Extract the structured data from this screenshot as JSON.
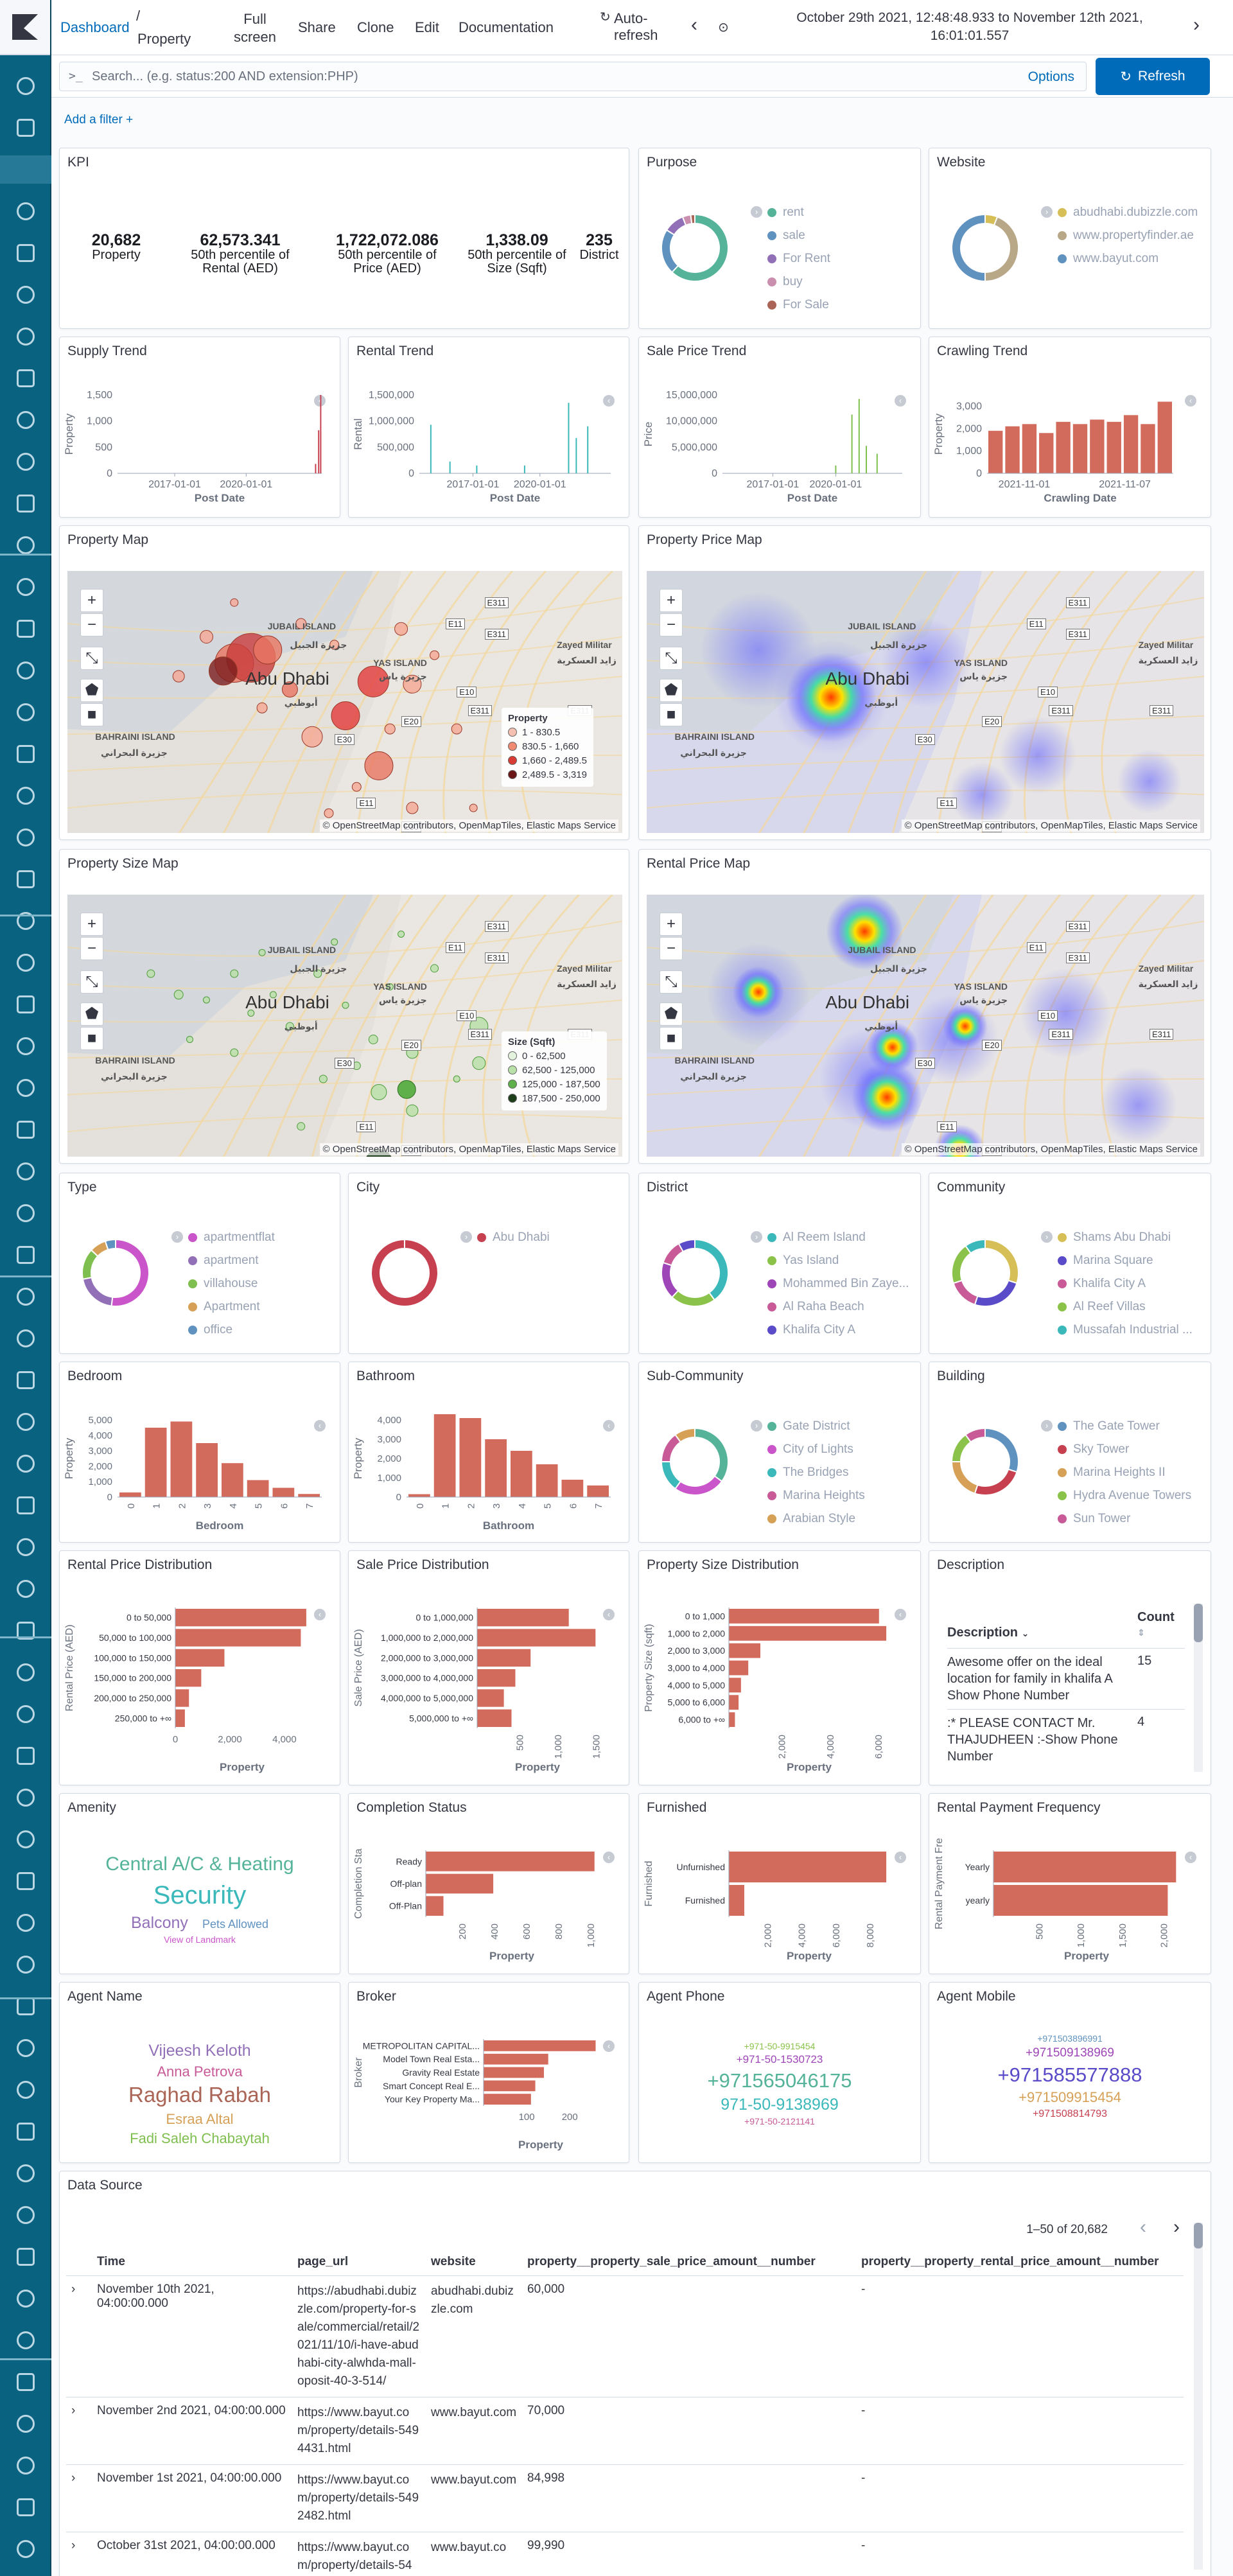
{
  "topbar": {
    "dashboard": "Dashboard",
    "slash": "/",
    "current": "Property",
    "full_screen": "Full screen",
    "share": "Share",
    "clone": "Clone",
    "edit": "Edit",
    "documentation": "Documentation",
    "auto_refresh": "Auto-refresh",
    "time_range": "October 29th 2021, 12:48:48.933 to November 12th 2021, 16:01:01.557"
  },
  "query": {
    "prompt": ">_",
    "placeholder": "Search... (e.g. status:200 AND extension:PHP)",
    "options": "Options",
    "refresh": "Refresh"
  },
  "add_filter": "Add a filter +",
  "kpi": {
    "title": "KPI",
    "items": [
      {
        "value": "20,682",
        "label": "Property"
      },
      {
        "value": "62,573.341",
        "label": "50th percentile of Rental (AED)"
      },
      {
        "value": "1,722,072.086",
        "label": "50th percentile of Price (AED)"
      },
      {
        "value": "1,338.09",
        "label": "50th percentile of Size (Sqft)"
      },
      {
        "value": "235",
        "label": "District"
      }
    ]
  },
  "purpose": {
    "title": "Purpose",
    "legend": [
      "rent",
      "sale",
      "For Rent",
      "buy",
      "For Sale"
    ],
    "colors": [
      "#54b399",
      "#6092c0",
      "#9170b8",
      "#ca8eae",
      "#aa6556"
    ],
    "values": [
      62,
      22,
      10,
      4,
      2
    ]
  },
  "website": {
    "title": "Website",
    "legend": [
      "abudhabi.dubizzle.com",
      "www.propertyfinder.ae",
      "www.bayut.com"
    ],
    "colors": [
      "#d6bf57",
      "#b9a888",
      "#6092c0"
    ],
    "values": [
      6,
      44,
      50
    ]
  },
  "supply_trend": {
    "title": "Supply Trend",
    "ylabel": "Property",
    "xlabel": "Post Date",
    "yticks": [
      "1,500",
      "1,000",
      "500",
      "0"
    ],
    "xticks": [
      "2017-01-01",
      "2020-01-01"
    ]
  },
  "rental_trend": {
    "title": "Rental Trend",
    "ylabel": "Rental",
    "xlabel": "Post Date",
    "yticks": [
      "1,500,000",
      "1,000,000",
      "500,000",
      "0"
    ],
    "xticks": [
      "2017-01-01",
      "2020-01-01"
    ]
  },
  "sale_trend": {
    "title": "Sale Price Trend",
    "ylabel": "Price",
    "xlabel": "Post Date",
    "yticks": [
      "15,000,000",
      "10,000,000",
      "5,000,000",
      "0"
    ],
    "xticks": [
      "2017-01-01",
      "2020-01-01"
    ]
  },
  "crawling_trend": {
    "title": "Crawling Trend",
    "ylabel": "Property",
    "xlabel": "Crawling Date",
    "yticks": [
      "3,000",
      "2,000",
      "1,000",
      "0"
    ],
    "xticks": [
      "2021-11-01",
      "2021-11-07"
    ],
    "values": [
      1900,
      2100,
      2200,
      1800,
      2300,
      2200,
      2400,
      2300,
      2600,
      2200,
      3200
    ]
  },
  "property_map": {
    "title": "Property Map",
    "legend_title": "Property",
    "legend": [
      "1 - 830.5",
      "830.5 - 1,660",
      "1,660 - 2,489.5",
      "2,489.5 - 3,319"
    ]
  },
  "price_map": {
    "title": "Property Price Map"
  },
  "size_map": {
    "title": "Property Size Map",
    "legend_title": "Size (Sqft)",
    "legend": [
      "0 - 62,500",
      "62,500 - 125,000",
      "125,000 - 187,500",
      "187,500 - 250,000"
    ]
  },
  "rental_map": {
    "title": "Rental Price Map"
  },
  "map_labels": {
    "abu_dhabi": "Abu Dhabi",
    "abu_dhabi_ar": "أبوظبي",
    "jubail": "JUBAIL ISLAND",
    "jubail_ar": "جزيرة الجبيل",
    "yas": "YAS ISLAND",
    "yas_ar": "جزيرة ياس",
    "bahraini": "BAHRAINI ISLAND",
    "bahraini_ar": "جزيرة البحراني",
    "zayed": "Zayed Militar",
    "zayed_ar": "زايد العسكرية",
    "e311": "E311",
    "e11": "E11",
    "e10": "E10",
    "e20": "E20",
    "e30": "E30",
    "attribution": "© OpenStreetMap contributors, OpenMapTiles, Elastic Maps Service"
  },
  "type": {
    "title": "Type",
    "legend": [
      "apartmentflat",
      "apartment",
      "villahouse",
      "Apartment",
      "office"
    ],
    "colors": [
      "#ca54c9",
      "#9170b8",
      "#7fbf4f",
      "#d6a157",
      "#6092c0"
    ],
    "values": [
      52,
      20,
      15,
      8,
      5
    ]
  },
  "city": {
    "title": "City",
    "legend": [
      "Abu Dhabi"
    ],
    "colors": [
      "#c6404f"
    ],
    "values": [
      100
    ]
  },
  "district": {
    "title": "District",
    "legend": [
      "Al Reem Island",
      "Yas Island",
      "Mohammed Bin Zaye...",
      "Al Raha Beach",
      "Khalifa City A"
    ],
    "colors": [
      "#3ab8ba",
      "#8bc34a",
      "#9e46b8",
      "#c85a97",
      "#5a4bc8"
    ],
    "values": [
      40,
      22,
      18,
      12,
      8
    ]
  },
  "community": {
    "title": "Community",
    "legend": [
      "Shams Abu Dhabi",
      "Marina Square",
      "Khalifa City A",
      "Al Reef Villas",
      "Mussafah Industrial ..."
    ],
    "colors": [
      "#d6bf57",
      "#5a4bc8",
      "#c85a97",
      "#8bc34a",
      "#3ab8ba"
    ],
    "values": [
      30,
      25,
      15,
      20,
      10
    ]
  },
  "bedroom": {
    "title": "Bedroom",
    "ylabel": "Property",
    "xlabel": "Bedroom",
    "yticks": [
      "5,000",
      "4,000",
      "3,000",
      "2,000",
      "1,000",
      "0"
    ],
    "categories": [
      "0",
      "1",
      "2",
      "3",
      "4",
      "5",
      "6",
      "7"
    ],
    "values": [
      300,
      4500,
      4900,
      3500,
      2200,
      1100,
      600,
      200
    ]
  },
  "bathroom": {
    "title": "Bathroom",
    "ylabel": "Property",
    "xlabel": "Bathroom",
    "yticks": [
      "4,000",
      "3,000",
      "2,000",
      "1,000",
      "0"
    ],
    "categories": [
      "0",
      "1",
      "2",
      "3",
      "4",
      "5",
      "6",
      "7"
    ],
    "values": [
      150,
      4300,
      4100,
      3000,
      2400,
      1700,
      900,
      600
    ]
  },
  "sub_community": {
    "title": "Sub-Community",
    "legend": [
      "Gate District",
      "City of Lights",
      "The Bridges",
      "Marina Heights",
      "Arabian Style"
    ],
    "colors": [
      "#54b399",
      "#ca54c9",
      "#3ab8ba",
      "#c85a97",
      "#d6a157"
    ],
    "values": [
      35,
      25,
      15,
      15,
      10
    ]
  },
  "building": {
    "title": "Building",
    "legend": [
      "The Gate Tower",
      "Sky Tower",
      "Marina Heights II",
      "Hydra Avenue Towers",
      "Sun Tower"
    ],
    "colors": [
      "#6092c0",
      "#c6404f",
      "#d6a157",
      "#8bc34a",
      "#c85a97"
    ],
    "values": [
      30,
      25,
      20,
      15,
      10
    ]
  },
  "rental_dist": {
    "title": "Rental Price Distribution",
    "ylabel": "Rental Price (AED)",
    "xlabel": "Property",
    "categories": [
      "0 to 50,000",
      "50,000 to 100,000",
      "100,000 to 150,000",
      "150,000 to 200,000",
      "200,000 to 250,000",
      "250,000 to +∞"
    ],
    "values": [
      4800,
      4600,
      1800,
      950,
      500,
      350
    ],
    "xticks": [
      "0",
      "2,000",
      "4,000"
    ]
  },
  "sale_dist": {
    "title": "Sale Price Distribution",
    "ylabel": "Sale Price (AED)",
    "xlabel": "Property",
    "categories": [
      "0 to 1,000,000",
      "1,000,000 to 2,000,000",
      "2,000,000 to 3,000,000",
      "3,000,000 to 4,000,000",
      "4,000,000 to 5,000,000",
      "5,000,000 to +∞"
    ],
    "values": [
      1200,
      1550,
      700,
      500,
      350,
      450
    ],
    "xticks": [
      "500",
      "1,000",
      "1,500"
    ]
  },
  "size_dist": {
    "title": "Property Size Distribution",
    "ylabel": "Property Size (sqft)",
    "xlabel": "Property",
    "categories": [
      "0 to 1,000",
      "1,000 to 2,000",
      "2,000 to 3,000",
      "3,000 to 4,000",
      "4,000 to 5,000",
      "5,000 to 6,000",
      "6,000 to +∞"
    ],
    "values": [
      6200,
      6500,
      1300,
      800,
      500,
      400,
      250
    ],
    "xticks": [
      "2,000",
      "4,000",
      "6,000"
    ]
  },
  "description": {
    "title": "Description",
    "col1": "Description",
    "col2": "Count",
    "rows": [
      {
        "text": "Awesome offer on the ideal location for family in khalifa A  Show Phone Number",
        "count": "15"
      },
      {
        "text": ":* PLEASE CONTACT Mr. THAJUDHEEN :-Show Phone Number",
        "count": "4"
      }
    ]
  },
  "amenity": {
    "title": "Amenity",
    "words": [
      {
        "t": "Central A/C & Heating",
        "c": "#54b399"
      },
      {
        "t": "Security",
        "c": "#3ab8ba"
      },
      {
        "t": "Balcony",
        "c": "#9170b8"
      },
      {
        "t": "Pets Allowed",
        "c": "#6092c0"
      },
      {
        "t": "View of Landmark",
        "c": "#ca54c9"
      }
    ]
  },
  "completion": {
    "title": "Completion Status",
    "ylabel": "Completion Sta",
    "xlabel": "Property",
    "categories": [
      "Ready",
      "Off-plan",
      "Off-Plan"
    ],
    "values": [
      1050,
      420,
      110
    ],
    "xticks": [
      "200",
      "400",
      "600",
      "800",
      "1,000"
    ]
  },
  "furnished": {
    "title": "Furnished",
    "ylabel": "Furnished",
    "xlabel": "Property",
    "categories": [
      "Unfurnished",
      "Furnished"
    ],
    "values": [
      9200,
      900
    ],
    "xticks": [
      "2,000",
      "4,000",
      "6,000",
      "8,000"
    ]
  },
  "payment": {
    "title": "Rental Payment Frequency",
    "ylabel": "Rental Payment Fre",
    "xlabel": "Property",
    "categories": [
      "Yearly",
      "yearly"
    ],
    "values": [
      2200,
      2100
    ],
    "xticks": [
      "500",
      "1,000",
      "1,500",
      "2,000"
    ]
  },
  "agent_name": {
    "title": "Agent Name",
    "words": [
      {
        "t": "Vijeesh Keloth",
        "c": "#9170b8"
      },
      {
        "t": "Anna Petrova",
        "c": "#c85a97"
      },
      {
        "t": "Raghad Rabah",
        "c": "#aa6556"
      },
      {
        "t": "Esraa Altal",
        "c": "#d6a157"
      },
      {
        "t": "Fadi Saleh Chabaytah",
        "c": "#7fbf4f"
      }
    ]
  },
  "broker": {
    "title": "Broker",
    "ylabel": "Broker",
    "xlabel": "Property",
    "categories": [
      "METROPOLITAN CAPITAL...",
      "Model Town Real Esta...",
      "Gravity Real Estate",
      "Smart Concept Real E...",
      "Your Key Property Ma..."
    ],
    "values": [
      260,
      150,
      140,
      120,
      110
    ],
    "xticks": [
      "100",
      "200"
    ]
  },
  "agent_phone": {
    "title": "Agent Phone",
    "words": [
      {
        "t": "+971-50-9915454",
        "c": "#8bc34a"
      },
      {
        "t": "+971-50-1530723",
        "c": "#9e46b8"
      },
      {
        "t": "+971565046175",
        "c": "#54b399"
      },
      {
        "t": "971-50-9138969",
        "c": "#3ab8ba"
      },
      {
        "t": "+971-50-2121141",
        "c": "#c85a97"
      }
    ]
  },
  "agent_mobile": {
    "title": "Agent Mobile",
    "words": [
      {
        "t": "+971503896991",
        "c": "#6092c0"
      },
      {
        "t": "+971509138969",
        "c": "#9e46b8"
      },
      {
        "t": "+971585577888",
        "c": "#5a4bc8"
      },
      {
        "t": "+971509915454",
        "c": "#d6a157"
      },
      {
        "t": "+971508814793",
        "c": "#c6404f"
      }
    ]
  },
  "data_source": {
    "title": "Data Source",
    "pager": "1–50 of 20,682",
    "columns": [
      "Time",
      "page_url",
      "website",
      "property__property_sale_price_amount__number",
      "property__property_rental_price_amount__number"
    ],
    "rows": [
      {
        "time": "November 10th 2021, 04:00:00.000",
        "url": "https://abudhabi.dubizzle.com/property-for-sale/commercial/retail/2021/11/10/i-have-abudhabi-city-alwhda-mall-oposit-40-3-514/",
        "site": "abudhabi.dubizzle.com",
        "sale": "60,000",
        "rent": "-"
      },
      {
        "time": "November 2nd 2021, 04:00:00.000",
        "url": "https://www.bayut.com/property/details-5494431.html",
        "site": "www.bayut.com",
        "sale": "70,000",
        "rent": "-"
      },
      {
        "time": "November 1st 2021, 04:00:00.000",
        "url": "https://www.bayut.com/property/details-5492482.html",
        "site": "www.bayut.com",
        "sale": "84,998",
        "rent": "-"
      },
      {
        "time": "October 31st 2021, 04:00:00.000",
        "url": "https://www.bayut.com/property/details-54",
        "site": "www.bayut.co",
        "sale": "99,990",
        "rent": "-"
      }
    ]
  }
}
